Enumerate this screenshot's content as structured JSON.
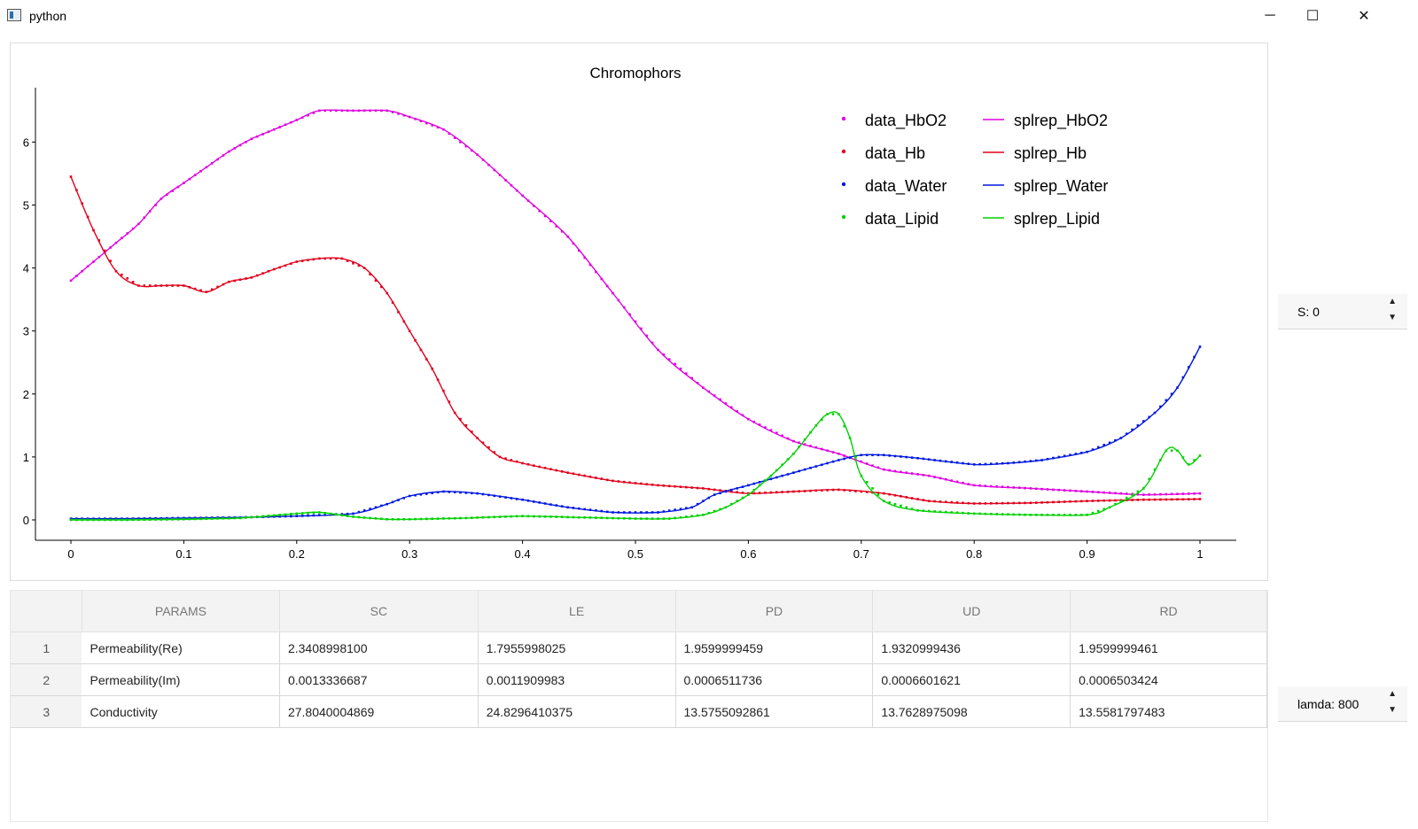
{
  "window": {
    "title": "python",
    "minimize": "─",
    "maximize": "☐",
    "close": "✕"
  },
  "chart_data": {
    "type": "line",
    "title": "Chromophors",
    "xlim": [
      0,
      1
    ],
    "ylim": [
      -0.3,
      6.8
    ],
    "xticks": [
      "0",
      "0.1",
      "0.2",
      "0.3",
      "0.4",
      "0.5",
      "0.6",
      "0.7",
      "0.8",
      "0.9",
      "1"
    ],
    "yticks": [
      "0",
      "1",
      "2",
      "3",
      "4",
      "5",
      "6"
    ],
    "legend_placement": "top-right",
    "legend": {
      "data": [
        "data_HbO2",
        "data_Hb",
        "data_Water",
        "data_Lipid"
      ],
      "splrep": [
        "splrep_HbO2",
        "splrep_Hb",
        "splrep_Water",
        "splrep_Lipid"
      ]
    },
    "colors": {
      "HbO2": "#e000e0",
      "Hb": "#e0001c",
      "Water": "#0018e0",
      "Lipid": "#00d000"
    },
    "series": [
      {
        "name": "HbO2",
        "x": [
          0,
          0.02,
          0.04,
          0.06,
          0.08,
          0.1,
          0.12,
          0.14,
          0.16,
          0.18,
          0.2,
          0.22,
          0.25,
          0.28,
          0.3,
          0.33,
          0.36,
          0.4,
          0.44,
          0.48,
          0.52,
          0.56,
          0.6,
          0.64,
          0.68,
          0.72,
          0.76,
          0.8,
          0.85,
          0.9,
          0.95,
          1.0
        ],
        "y": [
          3.8,
          4.1,
          4.4,
          4.7,
          5.1,
          5.35,
          5.6,
          5.85,
          6.05,
          6.2,
          6.35,
          6.5,
          6.5,
          6.5,
          6.4,
          6.2,
          5.8,
          5.15,
          4.5,
          3.6,
          2.7,
          2.1,
          1.6,
          1.25,
          1.05,
          0.8,
          0.7,
          0.55,
          0.5,
          0.45,
          0.4,
          0.42
        ]
      },
      {
        "name": "Hb",
        "x": [
          0,
          0.02,
          0.04,
          0.06,
          0.08,
          0.1,
          0.12,
          0.14,
          0.16,
          0.18,
          0.2,
          0.22,
          0.24,
          0.26,
          0.28,
          0.3,
          0.32,
          0.34,
          0.36,
          0.38,
          0.4,
          0.44,
          0.48,
          0.52,
          0.56,
          0.6,
          0.64,
          0.68,
          0.72,
          0.76,
          0.8,
          0.85,
          0.9,
          0.95,
          1.0
        ],
        "y": [
          5.45,
          4.6,
          3.95,
          3.72,
          3.72,
          3.72,
          3.62,
          3.78,
          3.85,
          3.98,
          4.1,
          4.15,
          4.15,
          4.0,
          3.6,
          3.0,
          2.4,
          1.7,
          1.3,
          1.0,
          0.9,
          0.75,
          0.62,
          0.55,
          0.5,
          0.42,
          0.45,
          0.48,
          0.42,
          0.3,
          0.26,
          0.27,
          0.3,
          0.32,
          0.33
        ]
      },
      {
        "name": "Water",
        "x": [
          0,
          0.05,
          0.1,
          0.15,
          0.2,
          0.25,
          0.28,
          0.3,
          0.33,
          0.36,
          0.4,
          0.44,
          0.48,
          0.52,
          0.55,
          0.57,
          0.6,
          0.64,
          0.68,
          0.7,
          0.72,
          0.75,
          0.8,
          0.83,
          0.86,
          0.9,
          0.93,
          0.96,
          0.98,
          1.0
        ],
        "y": [
          0.02,
          0.02,
          0.03,
          0.04,
          0.06,
          0.1,
          0.25,
          0.38,
          0.45,
          0.42,
          0.32,
          0.2,
          0.12,
          0.12,
          0.2,
          0.4,
          0.55,
          0.75,
          0.95,
          1.03,
          1.03,
          0.98,
          0.88,
          0.9,
          0.95,
          1.08,
          1.3,
          1.7,
          2.1,
          2.75
        ]
      },
      {
        "name": "Lipid",
        "x": [
          0,
          0.05,
          0.1,
          0.15,
          0.2,
          0.22,
          0.25,
          0.28,
          0.3,
          0.35,
          0.4,
          0.45,
          0.5,
          0.53,
          0.56,
          0.58,
          0.6,
          0.62,
          0.64,
          0.66,
          0.67,
          0.68,
          0.69,
          0.7,
          0.72,
          0.75,
          0.8,
          0.85,
          0.9,
          0.92,
          0.95,
          0.97,
          0.98,
          0.99,
          1.0
        ],
        "y": [
          0,
          0,
          0.01,
          0.03,
          0.1,
          0.12,
          0.05,
          0.01,
          0.01,
          0.03,
          0.06,
          0.04,
          0.02,
          0.02,
          0.08,
          0.2,
          0.4,
          0.7,
          1.05,
          1.5,
          1.68,
          1.68,
          1.3,
          0.7,
          0.3,
          0.15,
          0.1,
          0.08,
          0.08,
          0.2,
          0.5,
          1.1,
          1.1,
          0.88,
          1.02
        ]
      }
    ]
  },
  "spinners": {
    "s": "S: 0",
    "lamda": "lamda: 800",
    "up": "▲",
    "down": "▼"
  },
  "table": {
    "headers": [
      "PARAMS",
      "SC",
      "LE",
      "PD",
      "UD",
      "RD"
    ],
    "rows": [
      {
        "num": "1",
        "cells": [
          "Permeability(Re)",
          "2.3408998100",
          "1.7955998025",
          "1.9599999459",
          "1.9320999436",
          "1.9599999461"
        ]
      },
      {
        "num": "2",
        "cells": [
          "Permeability(Im)",
          "0.0013336687",
          "0.0011909983",
          "0.0006511736",
          "0.0006601621",
          "0.0006503424"
        ]
      },
      {
        "num": "3",
        "cells": [
          "Conductivity",
          "27.8040004869",
          "24.8296410375",
          "13.5755092861",
          "13.7628975098",
          "13.5581797483"
        ]
      }
    ]
  }
}
